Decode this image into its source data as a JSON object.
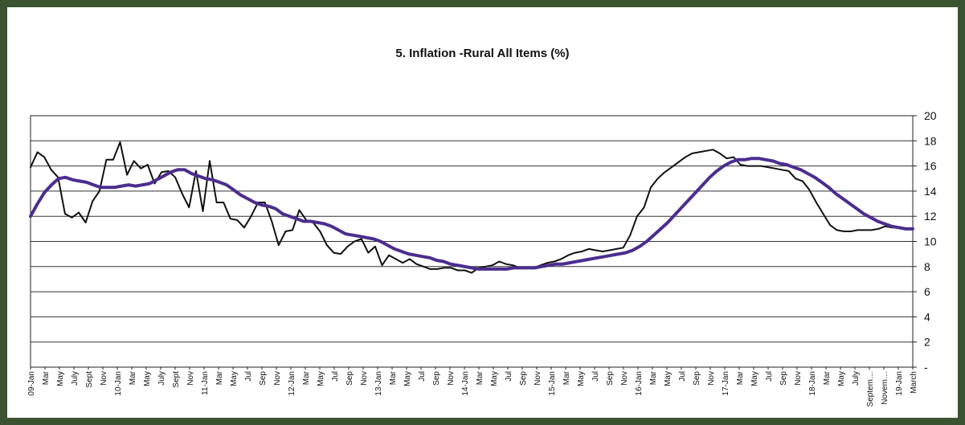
{
  "chart_data": {
    "type": "line",
    "title": "5. Inflation -Rural All Items (%)",
    "xlabel": "",
    "ylabel": "",
    "ylim": [
      0,
      20
    ],
    "yticks": [
      "-",
      "2",
      "4",
      "6",
      "8",
      "10",
      "12",
      "14",
      "16",
      "18",
      "20"
    ],
    "yaxis_position": "right",
    "grid": true,
    "legend": "none",
    "x_labels": [
      "09-Jan",
      "Mar",
      "May",
      "July",
      "Sept",
      "Nov",
      "10-Jan",
      "Mar",
      "May",
      "July",
      "Sept",
      "Nov",
      "11-Jan",
      "Mar",
      "May",
      "Jul",
      "Sep",
      "Nov",
      "12-Jan",
      "Mar",
      "May",
      "Jul",
      "Sep",
      "Nov",
      "13-Jan",
      "Mar",
      "May",
      "Jul",
      "Sep",
      "Nov",
      "14-Jan",
      "Mar",
      "May",
      "Jul",
      "Sep",
      "Nov",
      "15-Jan",
      "Mar",
      "May",
      "Jul",
      "Sep",
      "Nov",
      "16-Jan",
      "Mar",
      "May",
      "Jul",
      "Sep",
      "Nov",
      "17-Jan",
      "Mar",
      "May",
      "Jul",
      "Sep",
      "Nov",
      "18-Jan",
      "Mar",
      "May",
      "July",
      "Septem…",
      "Novem…",
      "19-Jan",
      "March"
    ],
    "series": [
      {
        "color": "#111111",
        "values": [
          15.9,
          17.1,
          16.7,
          15.7,
          15.1,
          12.2,
          11.9,
          12.3,
          11.5,
          13.2,
          14.0,
          16.5,
          16.5,
          17.9,
          15.3,
          16.4,
          15.8,
          16.1,
          14.6,
          15.5,
          15.6,
          15.1,
          13.8,
          12.7,
          15.6,
          12.4,
          16.4,
          13.1,
          13.1,
          11.8,
          11.7,
          11.1,
          12.0,
          13.1,
          13.1,
          11.6,
          9.7,
          10.8,
          10.9,
          12.5,
          11.7,
          11.5,
          10.8,
          9.7,
          9.1,
          9.0,
          9.6,
          10.0,
          10.2,
          9.1,
          9.6,
          8.1,
          8.9,
          8.6,
          8.3,
          8.6,
          8.2,
          8.0,
          7.8,
          7.8,
          7.9,
          7.9,
          7.7,
          7.7,
          7.5,
          7.9,
          8.0,
          8.1,
          8.4,
          8.2,
          8.1,
          7.9,
          7.9,
          7.9,
          8.1,
          8.3,
          8.4,
          8.6,
          8.9,
          9.1,
          9.2,
          9.4,
          9.3,
          9.2,
          9.3,
          9.4,
          9.5,
          10.5,
          12.0,
          12.7,
          14.3,
          15.0,
          15.5,
          15.9,
          16.3,
          16.7,
          17.0,
          17.1,
          17.2,
          17.3,
          17.0,
          16.6,
          16.7,
          16.1,
          16.0,
          16.0,
          16.0,
          15.9,
          15.8,
          15.7,
          15.6,
          15.0,
          14.8,
          14.1,
          13.1,
          12.2,
          11.3,
          10.9,
          10.8,
          10.8,
          10.9,
          10.9,
          10.9,
          11.0,
          11.2,
          11.1,
          11.1,
          11.0,
          11.0
        ],
        "line_width": 2
      },
      {
        "color": "#4b2d8f",
        "values": [
          12.0,
          13.0,
          13.9,
          14.5,
          15.0,
          15.1,
          14.9,
          14.8,
          14.7,
          14.5,
          14.3,
          14.3,
          14.3,
          14.4,
          14.5,
          14.4,
          14.5,
          14.6,
          14.9,
          15.2,
          15.5,
          15.7,
          15.7,
          15.4,
          15.2,
          15.0,
          14.9,
          14.7,
          14.5,
          14.1,
          13.7,
          13.4,
          13.1,
          12.9,
          12.8,
          12.6,
          12.2,
          12.0,
          11.8,
          11.6,
          11.6,
          11.5,
          11.4,
          11.2,
          10.9,
          10.6,
          10.5,
          10.4,
          10.3,
          10.2,
          10.0,
          9.7,
          9.4,
          9.2,
          9.0,
          8.9,
          8.8,
          8.7,
          8.5,
          8.4,
          8.2,
          8.1,
          8.0,
          7.9,
          7.8,
          7.8,
          7.8,
          7.8,
          7.8,
          7.9,
          7.9,
          7.9,
          7.9,
          8.0,
          8.1,
          8.2,
          8.2,
          8.3,
          8.4,
          8.5,
          8.6,
          8.7,
          8.8,
          8.9,
          9.0,
          9.1,
          9.3,
          9.6,
          10.0,
          10.5,
          11.0,
          11.5,
          12.1,
          12.7,
          13.3,
          13.9,
          14.5,
          15.1,
          15.6,
          16.0,
          16.3,
          16.5,
          16.5,
          16.6,
          16.6,
          16.5,
          16.4,
          16.2,
          16.1,
          15.9,
          15.7,
          15.4,
          15.1,
          14.7,
          14.3,
          13.8,
          13.4,
          13.0,
          12.6,
          12.2,
          11.9,
          11.6,
          11.4,
          11.2,
          11.1,
          11.0,
          11.0
        ],
        "line_width": 4
      }
    ]
  }
}
